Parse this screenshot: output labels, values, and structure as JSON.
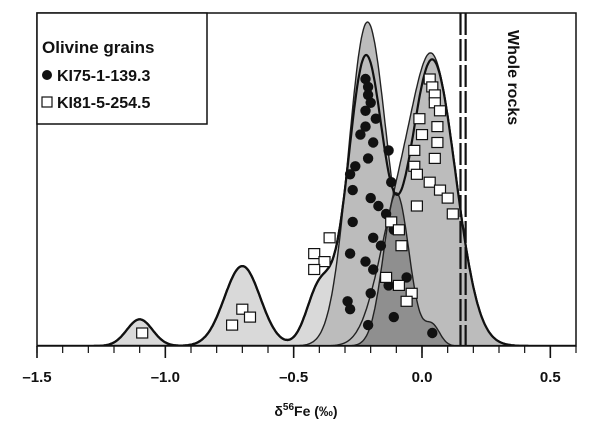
{
  "chart_data": {
    "type": "scatter",
    "xlabel": {
      "symbol": "δ",
      "superscript": "56",
      "rest": "Fe (‰)"
    },
    "xlim": [
      -1.5,
      0.6
    ],
    "x_ticks": [
      {
        "value": -1.5,
        "label": "–1.5"
      },
      {
        "value": -1.0,
        "label": "–1.0"
      },
      {
        "value": -0.5,
        "label": "–0.5"
      },
      {
        "value": 0.0,
        "label": "0.0"
      },
      {
        "value": 0.5,
        "label": "0.5"
      }
    ],
    "minor_tick_step": 0.1,
    "grid": false,
    "legend": {
      "placement": "top-left",
      "title": "Olivine grains",
      "entries": [
        {
          "marker": "filled-circle",
          "label": "KI75-1-139.3"
        },
        {
          "marker": "open-square",
          "label": "KI81-5-254.5"
        }
      ]
    },
    "annotation": {
      "text": "Whole rocks",
      "x_range": [
        0.15,
        0.17
      ]
    },
    "series": [
      {
        "name": "KI75-1-139.3",
        "marker": "filled-circle",
        "x": [
          -0.22,
          -0.21,
          -0.21,
          -0.2,
          -0.22,
          -0.18,
          -0.22,
          -0.24,
          -0.19,
          -0.13,
          -0.21,
          -0.26,
          -0.28,
          -0.12,
          -0.27,
          -0.2,
          -0.17,
          -0.14,
          -0.27,
          -0.11,
          -0.19,
          -0.16,
          -0.28,
          -0.22,
          -0.19,
          -0.06,
          -0.13,
          -0.2,
          -0.29,
          -0.28,
          -0.11,
          -0.21,
          0.04
        ]
      },
      {
        "name": "KI81-5-254.5",
        "marker": "open-square",
        "x": [
          0.03,
          0.04,
          0.05,
          0.05,
          0.07,
          -0.01,
          0.06,
          0.0,
          0.06,
          -0.03,
          0.05,
          -0.03,
          -0.02,
          0.03,
          0.07,
          0.1,
          -0.02,
          0.12,
          -0.12,
          -0.09,
          -0.36,
          -0.08,
          -0.42,
          -0.38,
          -0.42,
          -0.14,
          -0.09,
          -0.04,
          -0.06,
          -0.7,
          -0.67,
          -0.74,
          -1.09
        ]
      }
    ],
    "density_curves": [
      {
        "name": "whole-profile",
        "components": [
          [
            -1.1,
            0.05,
            0.08
          ],
          [
            -0.7,
            0.07,
            0.24
          ],
          [
            -0.4,
            0.05,
            0.17
          ],
          [
            -0.22,
            0.07,
            0.86
          ],
          [
            0.04,
            0.09,
            0.86
          ]
        ]
      },
      {
        "name": "KI75-1-139.3-density",
        "components": [
          [
            -0.22,
            0.07,
            0.86
          ],
          [
            -0.12,
            0.09,
            0.2
          ]
        ]
      },
      {
        "name": "KI81-5-254.5-density",
        "components": [
          [
            0.04,
            0.09,
            0.86
          ],
          [
            -0.12,
            0.07,
            0.25
          ]
        ]
      },
      {
        "name": "overlap-density",
        "components": [
          [
            -0.1,
            0.05,
            0.46
          ],
          [
            0.04,
            0.03,
            0.06
          ]
        ]
      }
    ]
  }
}
